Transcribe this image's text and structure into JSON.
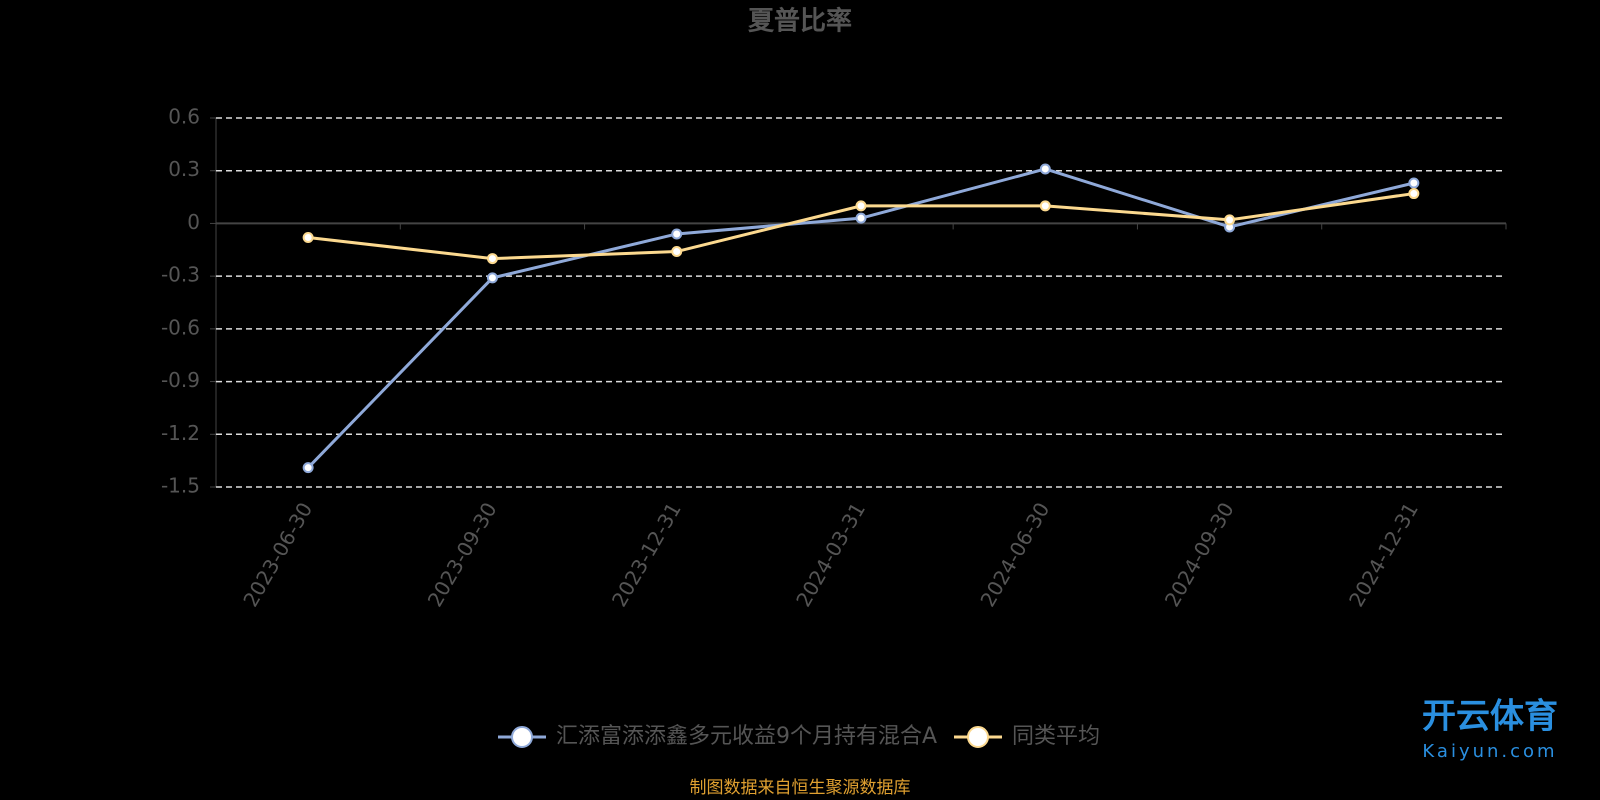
{
  "chart_data": {
    "type": "line",
    "title": "夏普比率",
    "categories": [
      "2023-06-30",
      "2023-09-30",
      "2023-12-31",
      "2024-03-31",
      "2024-06-30",
      "2024-09-30",
      "2024-12-31"
    ],
    "series": [
      {
        "name": "汇添富添添鑫多元收益9个月持有混合A",
        "color": "#8fa9d9",
        "values": [
          -1.39,
          -0.31,
          -0.06,
          0.03,
          0.31,
          -0.02,
          0.23
        ]
      },
      {
        "name": "同类平均",
        "color": "#fcd98f",
        "values": [
          -0.08,
          -0.2,
          -0.16,
          0.1,
          0.1,
          0.02,
          0.17
        ]
      }
    ],
    "ylim": [
      -1.5,
      0.6
    ],
    "yticks": [
      -1.5,
      -1.2,
      -0.9,
      -0.6,
      -0.3,
      0,
      0.3,
      0.6
    ],
    "grid": true,
    "legend": "bottom",
    "source": "制图数据来自恒生聚源数据库",
    "watermark": {
      "brand": "开云体育",
      "site": "Kaiyun.com"
    }
  }
}
